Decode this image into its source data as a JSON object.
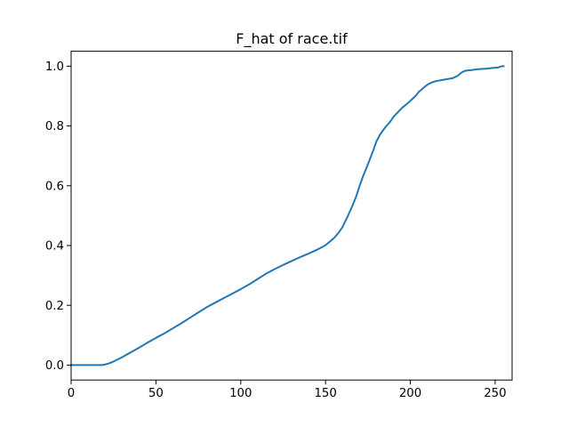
{
  "chart_data": {
    "type": "line",
    "title": "F_hat of race.tif",
    "xlabel": "",
    "ylabel": "",
    "xlim": [
      0,
      260
    ],
    "ylim": [
      -0.05,
      1.05
    ],
    "grid": false,
    "x_ticks": [
      0,
      50,
      100,
      150,
      200,
      250
    ],
    "y_ticks": [
      0.0,
      0.2,
      0.4,
      0.6,
      0.8,
      1.0
    ],
    "x_tick_labels": [
      "0",
      "50",
      "100",
      "150",
      "200",
      "250"
    ],
    "y_tick_labels": [
      "0.0",
      "0.2",
      "0.4",
      "0.6",
      "0.8",
      "1.0"
    ],
    "series": [
      {
        "color": "#1f77b4",
        "x": [
          0,
          18,
          20,
          22,
          25,
          30,
          35,
          40,
          45,
          50,
          55,
          60,
          65,
          70,
          75,
          80,
          85,
          90,
          95,
          100,
          105,
          110,
          115,
          120,
          125,
          130,
          135,
          140,
          145,
          150,
          155,
          158,
          160,
          163,
          166,
          168,
          170,
          172,
          175,
          178,
          180,
          182,
          185,
          188,
          190,
          192,
          195,
          198,
          200,
          203,
          205,
          207,
          210,
          212,
          215,
          220,
          225,
          228,
          230,
          232,
          234,
          236,
          240,
          245,
          250,
          252,
          253,
          254,
          255
        ],
        "y": [
          0.0,
          0.0,
          0.002,
          0.005,
          0.012,
          0.026,
          0.042,
          0.058,
          0.075,
          0.091,
          0.106,
          0.123,
          0.14,
          0.158,
          0.176,
          0.194,
          0.209,
          0.224,
          0.239,
          0.254,
          0.27,
          0.288,
          0.306,
          0.321,
          0.335,
          0.348,
          0.361,
          0.373,
          0.386,
          0.401,
          0.425,
          0.445,
          0.462,
          0.497,
          0.535,
          0.563,
          0.598,
          0.63,
          0.672,
          0.716,
          0.748,
          0.77,
          0.794,
          0.813,
          0.83,
          0.842,
          0.86,
          0.874,
          0.884,
          0.9,
          0.914,
          0.924,
          0.938,
          0.944,
          0.95,
          0.955,
          0.96,
          0.968,
          0.978,
          0.984,
          0.986,
          0.987,
          0.99,
          0.992,
          0.995,
          0.996,
          0.998,
          1.0,
          1.0
        ]
      }
    ]
  }
}
